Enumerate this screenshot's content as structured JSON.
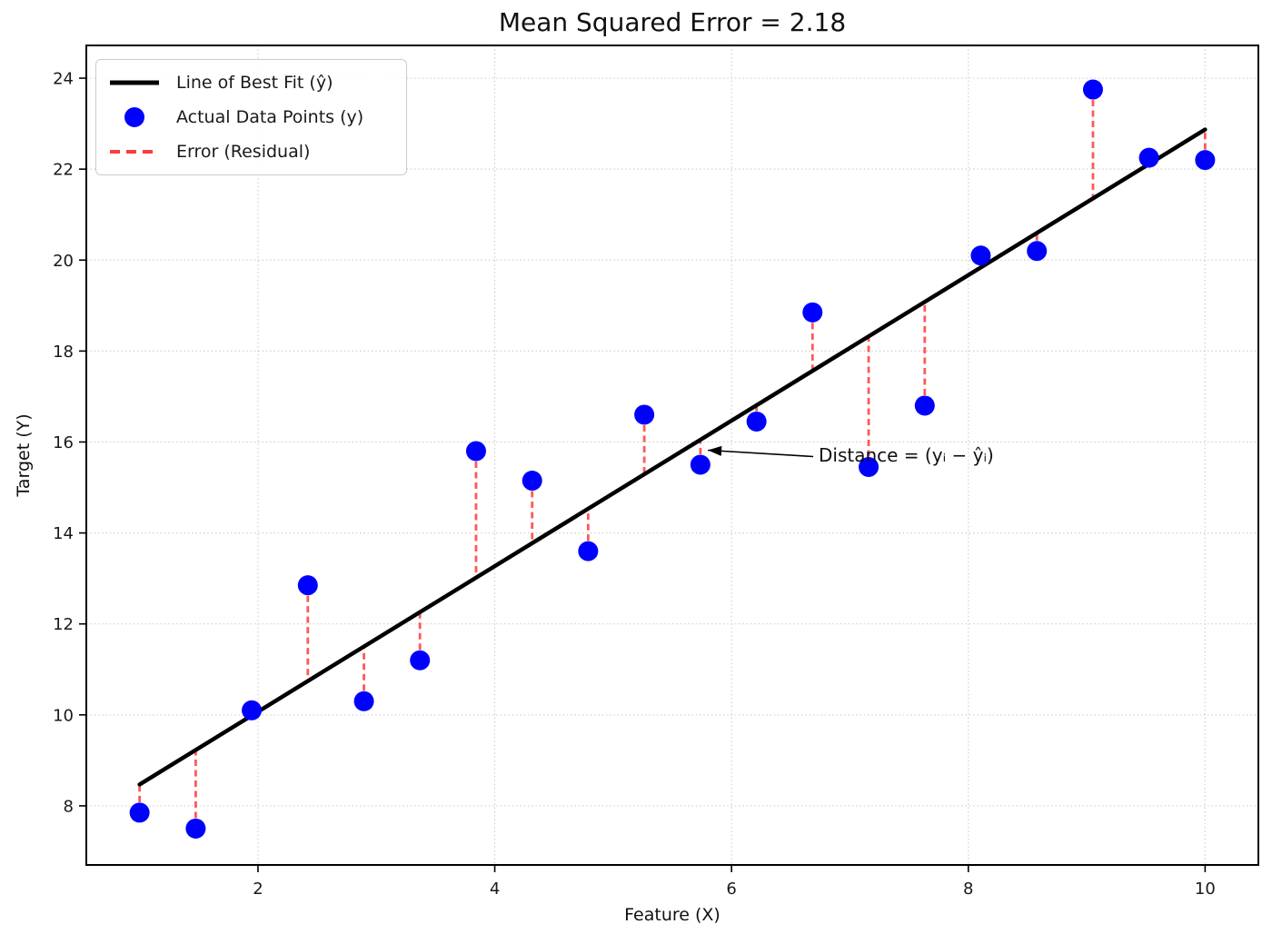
{
  "chart_data": {
    "type": "scatter",
    "title": "Mean Squared Error = 2.18",
    "mse": 2.18,
    "xlabel": "Feature (X)",
    "ylabel": "Target (Y)",
    "xlim": [
      0.55,
      10.45
    ],
    "ylim": [
      6.7,
      24.72
    ],
    "xticks": [
      2,
      4,
      6,
      8,
      10
    ],
    "yticks": [
      8,
      10,
      12,
      14,
      16,
      18,
      20,
      22,
      24
    ],
    "grid": true,
    "legend_position": "upper left",
    "points": {
      "x": [
        1.0,
        1.474,
        1.947,
        2.421,
        2.895,
        3.368,
        3.842,
        4.316,
        4.789,
        5.263,
        5.737,
        6.211,
        6.684,
        7.158,
        7.632,
        8.105,
        8.579,
        9.053,
        9.526,
        10.0
      ],
      "y": [
        7.85,
        7.5,
        10.1,
        12.85,
        10.3,
        11.2,
        15.8,
        15.15,
        13.6,
        16.6,
        15.5,
        16.45,
        18.85,
        15.45,
        16.8,
        20.1,
        20.2,
        23.75,
        22.25,
        22.2
      ]
    },
    "fit_line": {
      "x1": 1.0,
      "y1": 8.47,
      "x2": 10.0,
      "y2": 22.87,
      "slope": 1.6,
      "intercept": 6.87
    },
    "legend": [
      {
        "label": "Line of Best Fit (ŷ)",
        "type": "line",
        "color": "#000000"
      },
      {
        "label": "Actual Data Points (y)",
        "type": "marker",
        "color": "#0000ff"
      },
      {
        "label": "Error (Residual)",
        "type": "dashed",
        "color": "#ff3b3b"
      }
    ],
    "annotation": {
      "text": "Distance = (yᵢ − ŷᵢ)",
      "arrow_tip": [
        5.8,
        15.82
      ],
      "arrow_tail": [
        6.69,
        15.68
      ]
    },
    "colors": {
      "point": "#0000ff",
      "line": "#000000",
      "residual": "#ff3b3b",
      "grid": "#c7c7c7"
    }
  }
}
